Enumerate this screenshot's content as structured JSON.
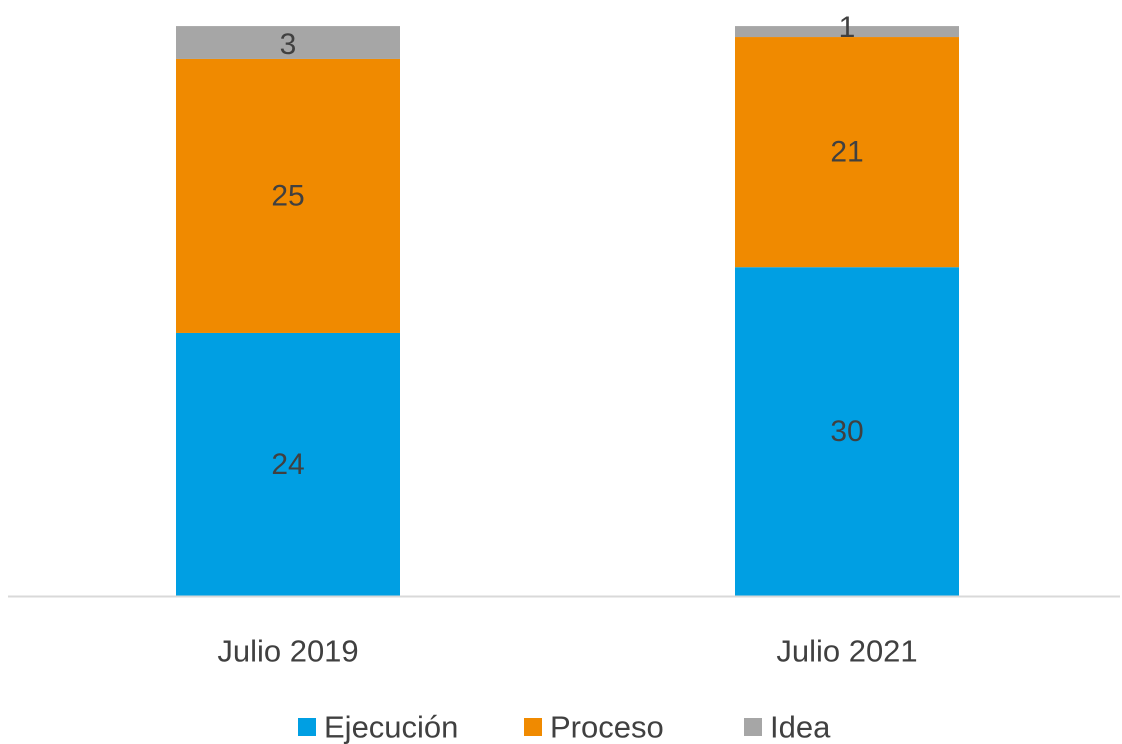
{
  "chart_data": {
    "type": "bar",
    "stacked": true,
    "categories": [
      "Julio 2019",
      "Julio 2021"
    ],
    "series": [
      {
        "name": "Ejecución",
        "values": [
          24,
          30
        ],
        "color": "#009FE3"
      },
      {
        "name": "Proceso",
        "values": [
          25,
          21
        ],
        "color": "#F08A00"
      },
      {
        "name": "Idea",
        "values": [
          3,
          1
        ],
        "color": "#A6A6A6"
      }
    ],
    "ylim": [
      0,
      52
    ],
    "grid": false,
    "legend_position": "bottom",
    "axis_color": "#D9D9D9",
    "label_color": "#404040"
  }
}
